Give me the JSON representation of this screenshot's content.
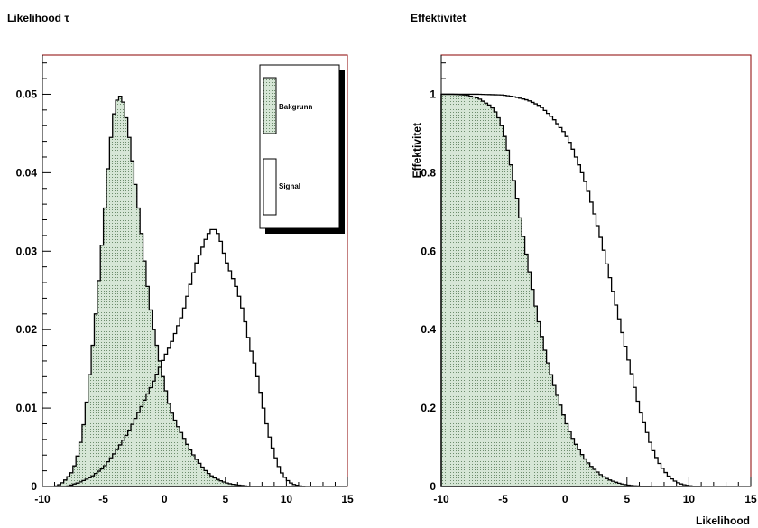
{
  "chart_data": [
    {
      "type": "histogram",
      "title": "Likelihood τ",
      "xlabel": "",
      "ylabel": "",
      "xlim": [
        -10,
        15
      ],
      "ylim": [
        0,
        0.055
      ],
      "x_ticks": [
        -10,
        -5,
        0,
        5,
        10,
        15
      ],
      "y_ticks": [
        0,
        0.01,
        0.02,
        0.03,
        0.04,
        0.05
      ],
      "y_tick_labels": [
        "0",
        "0.01",
        "0.02",
        "0.03",
        "0.04",
        "0.05"
      ],
      "legend": {
        "placement": "top-right",
        "entries": [
          {
            "label": "Bakgrunn",
            "style": "hatched"
          },
          {
            "label": "Signal",
            "style": "hollow"
          }
        ]
      },
      "series": [
        {
          "name": "Bakgrunn",
          "style": "hatched",
          "x": [
            -9,
            -8.5,
            -8,
            -7.5,
            -7,
            -6.5,
            -6,
            -5.5,
            -5,
            -4.5,
            -4,
            -3.5,
            -3,
            -2.5,
            -2,
            -1.5,
            -1,
            -0.5,
            0,
            0.5,
            1,
            1.5,
            2,
            2.5,
            3,
            3.5,
            4,
            4.5,
            5,
            5.5,
            6,
            6.5,
            7
          ],
          "y": [
            0,
            0.0003,
            0.001,
            0.002,
            0.0045,
            0.009,
            0.016,
            0.024,
            0.033,
            0.043,
            0.049,
            0.05,
            0.046,
            0.04,
            0.034,
            0.027,
            0.021,
            0.017,
            0.013,
            0.0098,
            0.008,
            0.0065,
            0.005,
            0.0037,
            0.0027,
            0.0018,
            0.0012,
            0.0008,
            0.0005,
            0.0003,
            0.0002,
            0.0001,
            0
          ]
        },
        {
          "name": "Signal",
          "style": "hollow",
          "x": [
            -8,
            -7,
            -6,
            -5,
            -4,
            -3,
            -2,
            -1,
            0,
            0.5,
            1,
            1.5,
            2,
            2.5,
            3,
            3.5,
            4,
            4.5,
            5,
            5.5,
            6,
            6.5,
            7,
            7.5,
            8,
            8.5,
            9,
            9.5,
            10,
            10.5,
            11,
            11.5
          ],
          "y": [
            0,
            0.0005,
            0.0012,
            0.0024,
            0.0044,
            0.0068,
            0.0098,
            0.013,
            0.0165,
            0.018,
            0.02,
            0.022,
            0.025,
            0.028,
            0.03,
            0.032,
            0.033,
            0.032,
            0.029,
            0.027,
            0.025,
            0.022,
            0.018,
            0.015,
            0.011,
            0.007,
            0.0042,
            0.002,
            0.0009,
            0.0003,
            0.0001,
            0
          ]
        }
      ]
    },
    {
      "type": "histogram",
      "title": "Effektivitet",
      "xlabel": "Likelihood",
      "ylabel": "Effektivitet",
      "xlim": [
        -10,
        15
      ],
      "ylim": [
        0,
        1.1
      ],
      "x_ticks": [
        -10,
        -5,
        0,
        5,
        10,
        15
      ],
      "y_ticks": [
        0,
        0.2,
        0.4,
        0.6,
        0.8,
        1
      ],
      "y_tick_labels": [
        "0",
        "0.2",
        "0.4",
        "0.6",
        "0.8",
        "1"
      ],
      "series": [
        {
          "name": "Bakgrunn",
          "style": "hatched",
          "x": [
            -10,
            -9,
            -8,
            -7,
            -6,
            -5.5,
            -5,
            -4.5,
            -4,
            -3.5,
            -3,
            -2.5,
            -2,
            -1.5,
            -1,
            -0.5,
            0,
            0.5,
            1,
            1.5,
            2,
            2.5,
            3,
            3.5,
            4,
            4.5,
            5,
            5.5,
            6,
            6.5,
            7
          ],
          "y": [
            1,
            1,
            0.998,
            0.99,
            0.97,
            0.95,
            0.91,
            0.84,
            0.76,
            0.66,
            0.57,
            0.48,
            0.4,
            0.33,
            0.27,
            0.22,
            0.17,
            0.13,
            0.1,
            0.075,
            0.055,
            0.04,
            0.027,
            0.018,
            0.012,
            0.007,
            0.004,
            0.002,
            0.001,
            0.0004,
            0
          ]
        },
        {
          "name": "Signal",
          "style": "hollow",
          "x": [
            -10,
            -7,
            -5,
            -4,
            -3,
            -2,
            -1,
            -0.5,
            0,
            0.5,
            1,
            1.5,
            2,
            2.5,
            3,
            3.5,
            4,
            4.5,
            5,
            5.5,
            6,
            6.5,
            7,
            7.5,
            8,
            8.5,
            9,
            9.5,
            10,
            10.5,
            11
          ],
          "y": [
            1,
            1,
            0.998,
            0.993,
            0.985,
            0.97,
            0.94,
            0.92,
            0.9,
            0.87,
            0.83,
            0.79,
            0.74,
            0.68,
            0.62,
            0.55,
            0.48,
            0.41,
            0.34,
            0.27,
            0.2,
            0.15,
            0.1,
            0.065,
            0.04,
            0.022,
            0.011,
            0.005,
            0.002,
            0.0005,
            0
          ]
        }
      ]
    }
  ],
  "colors": {
    "frame": "#000000",
    "frame_accent": "#8b0000",
    "fill": "#c8dcc8",
    "dot": "#5a7a5a",
    "line": "#000000",
    "shadow": "#000000"
  }
}
